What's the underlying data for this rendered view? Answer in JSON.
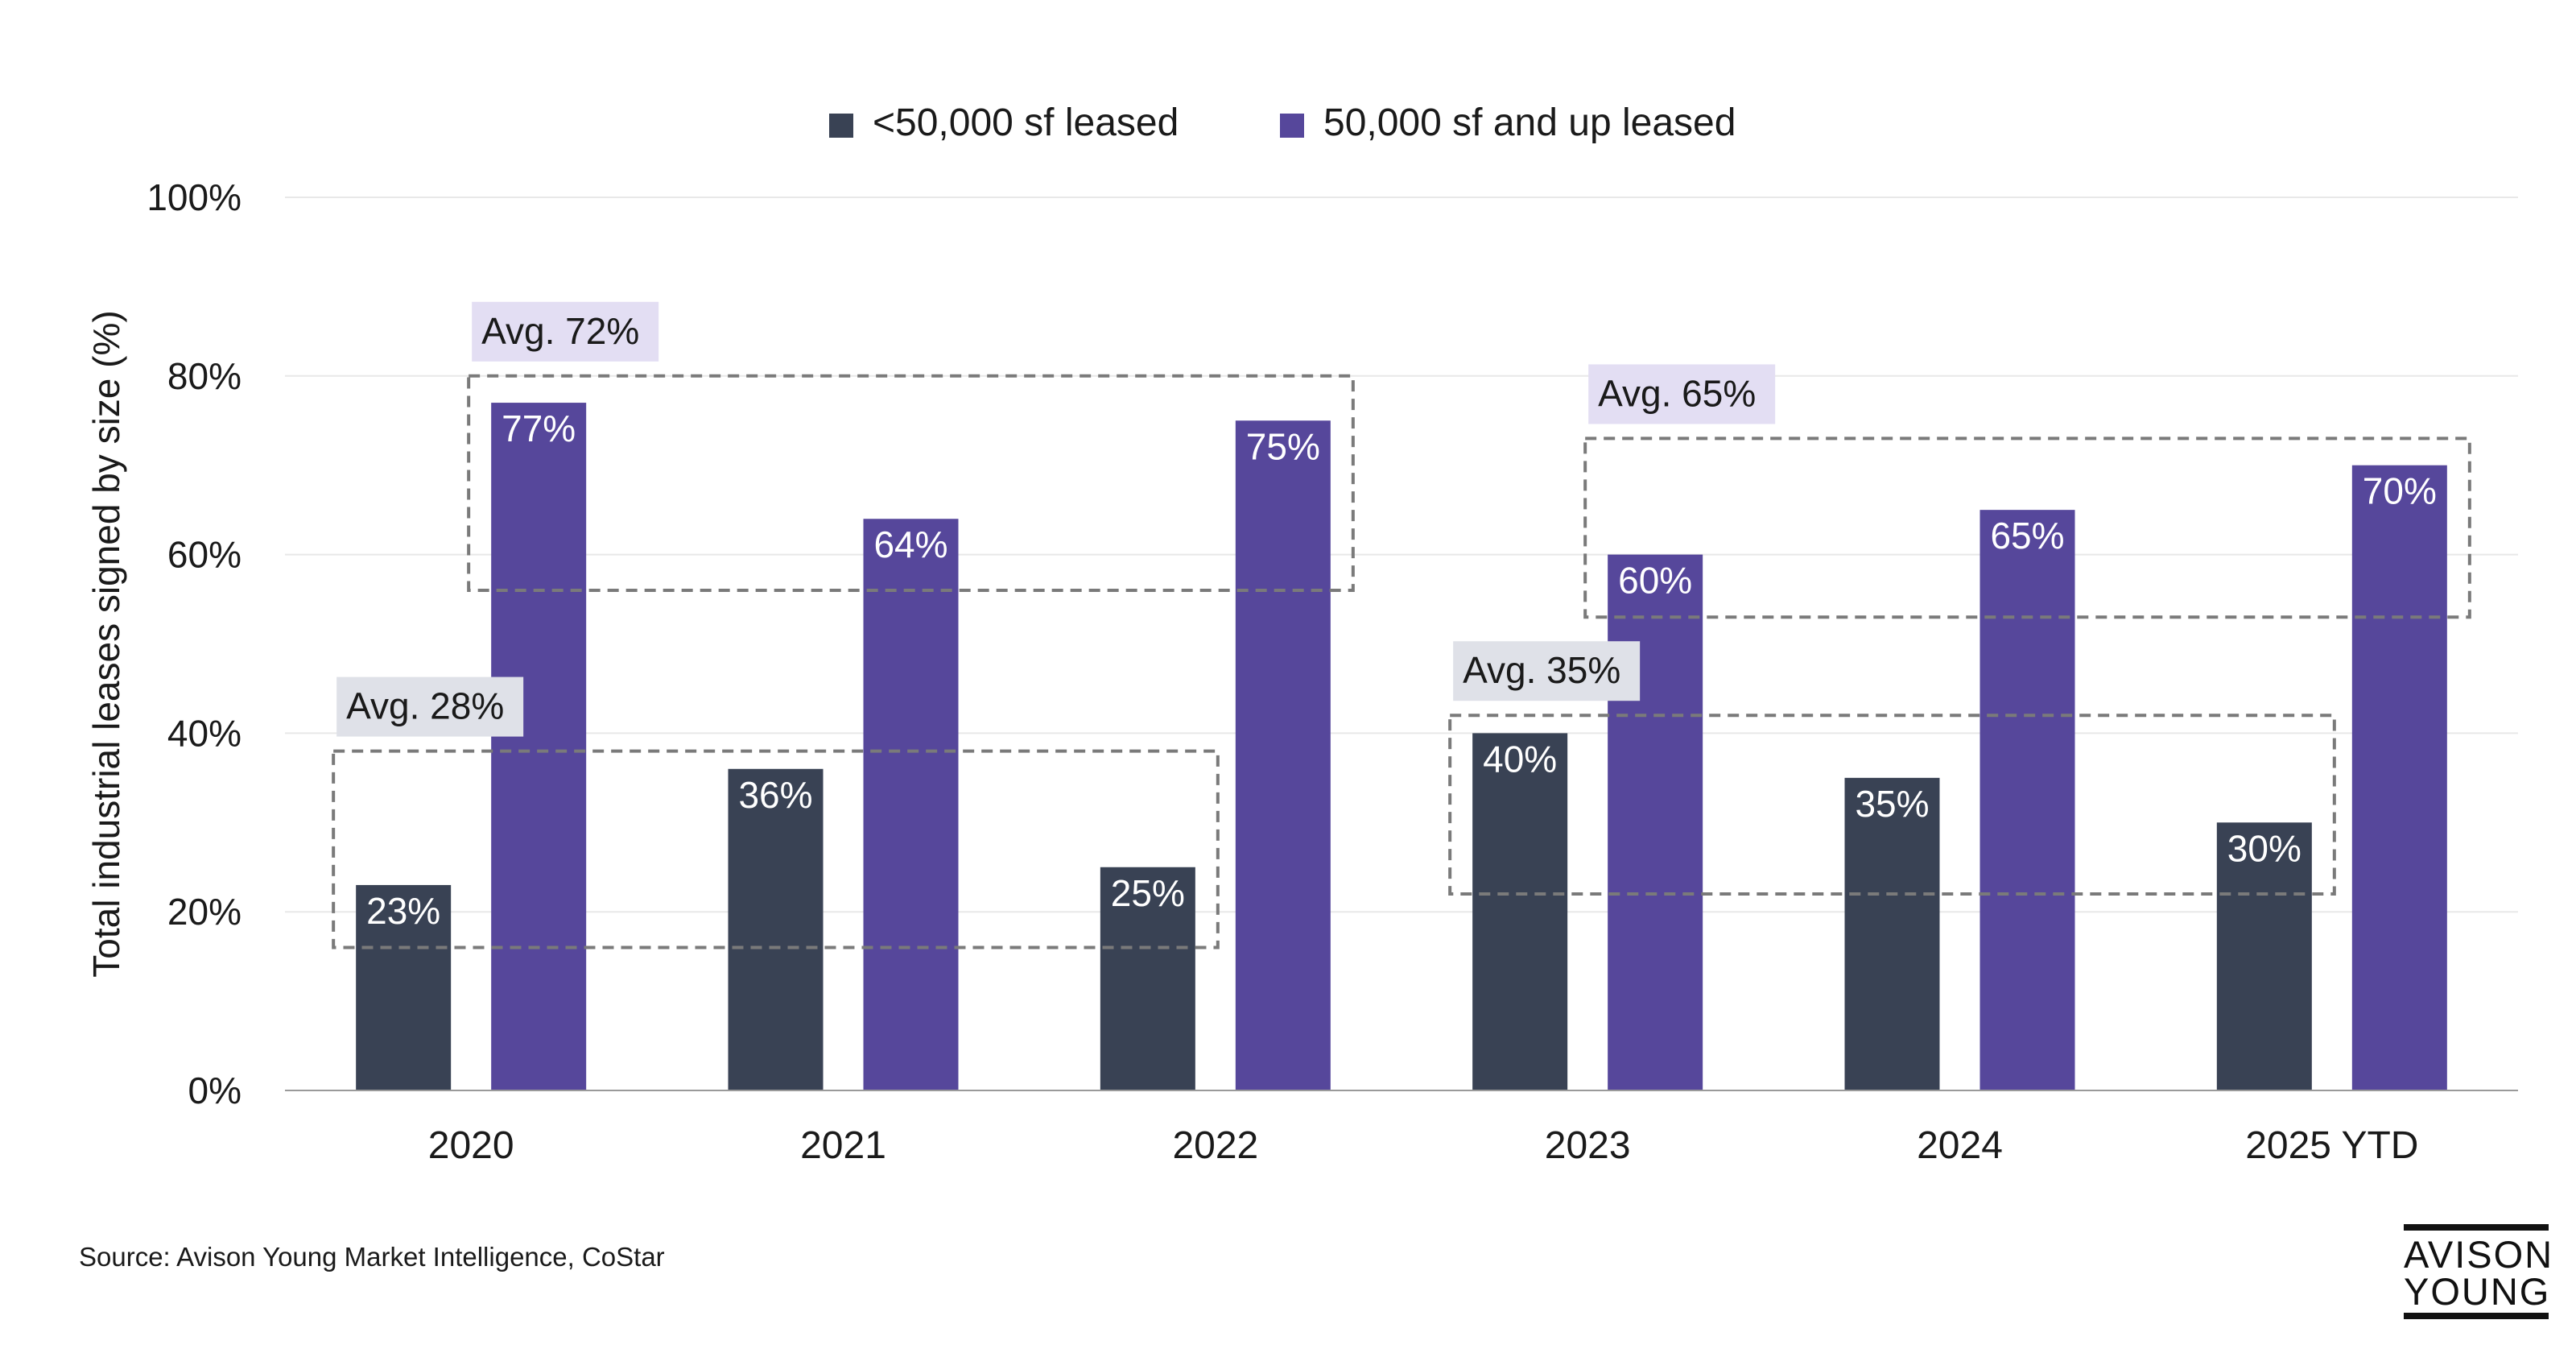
{
  "chart_data": {
    "type": "bar",
    "title": "",
    "ylabel": "Total industrial leases signed by size (%)",
    "xlabel": "",
    "ylim": [
      0,
      100
    ],
    "yticks": [
      0,
      20,
      40,
      60,
      80,
      100
    ],
    "ytick_suffix": "%",
    "grid": true,
    "legend_position": "top-center",
    "categories": [
      "2020",
      "2021",
      "2022",
      "2023",
      "2024",
      "2025 YTD"
    ],
    "series": [
      {
        "name": "<50,000 sf leased",
        "color": "#394254",
        "values": [
          23,
          36,
          25,
          40,
          35,
          30
        ]
      },
      {
        "name": "50,000 sf and up leased",
        "color": "#56479b",
        "values": [
          77,
          64,
          75,
          60,
          65,
          70
        ]
      }
    ],
    "annotations": [
      {
        "label": "Avg. 72%",
        "series": 1,
        "from": 0,
        "to": 2,
        "y_low": 56,
        "y_high": 80,
        "bg": "#e3def3"
      },
      {
        "label": "Avg. 28%",
        "series": 0,
        "from": 0,
        "to": 2,
        "y_low": 16,
        "y_high": 38,
        "bg": "#dfe1e8"
      },
      {
        "label": "Avg. 65%",
        "series": 1,
        "from": 3,
        "to": 5,
        "y_low": 53,
        "y_high": 73,
        "bg": "#e3def3"
      },
      {
        "label": "Avg. 35%",
        "series": 0,
        "from": 3,
        "to": 5,
        "y_low": 22,
        "y_high": 42,
        "bg": "#dfe1e8"
      }
    ]
  },
  "footer": {
    "source": "Source: Avison Young Market Intelligence, CoStar"
  },
  "logo": {
    "line1": "AVISON",
    "line2": "YOUNG"
  }
}
